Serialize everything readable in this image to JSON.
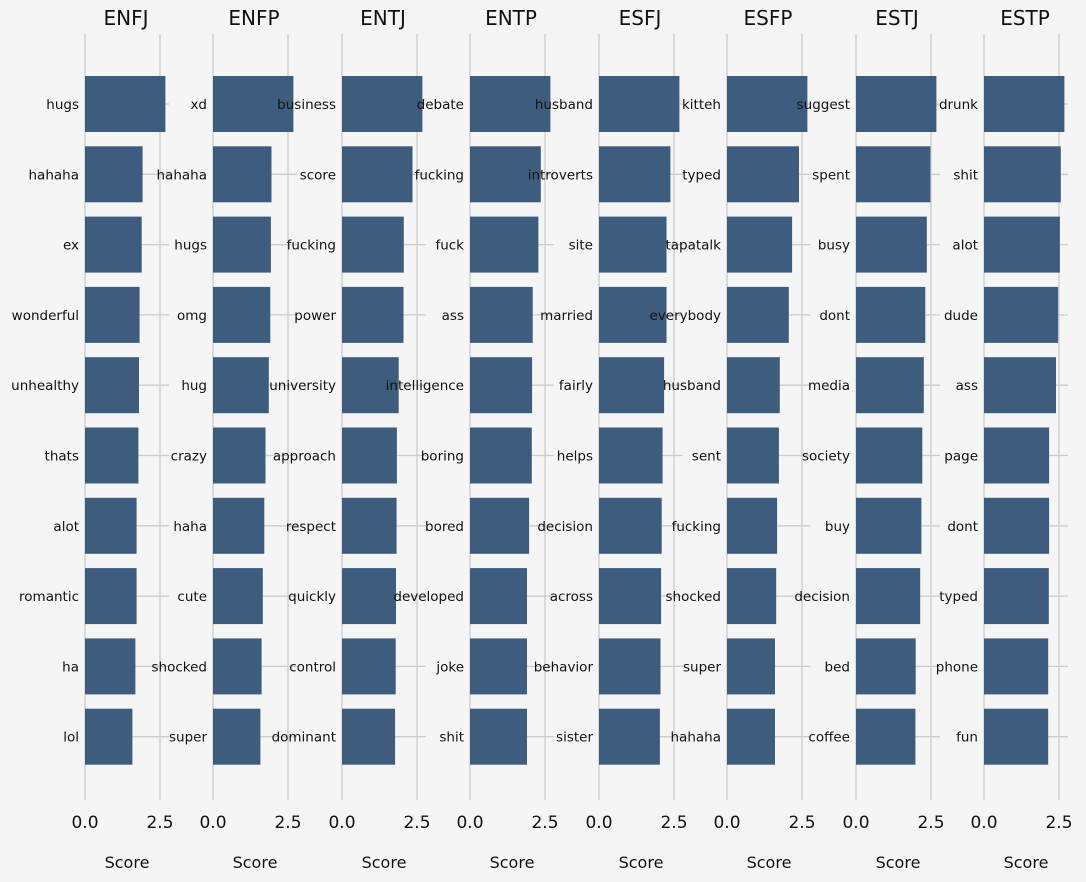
{
  "chart_data": {
    "type": "bar",
    "orientation": "horizontal",
    "bar_color": "#3e5d7e",
    "background_color": "#f5f5f5",
    "grid_color": "#cccccc",
    "grid": true,
    "xlabel": "Score",
    "xticks": [
      "0.0",
      "2.5"
    ],
    "panels": [
      {
        "title": "ENFJ",
        "xlim": [
          0,
          3.25
        ],
        "categories": [
          "hugs",
          "hahaha",
          "ex",
          "wonderful",
          "unhealthy",
          "thats",
          "alot",
          "romantic",
          "ha",
          "lol"
        ],
        "values": [
          2.68,
          1.92,
          1.89,
          1.82,
          1.8,
          1.78,
          1.72,
          1.72,
          1.68,
          1.58
        ]
      },
      {
        "title": "ENFP",
        "xlim": [
          0,
          3.25
        ],
        "categories": [
          "xd",
          "hahaha",
          "hugs",
          "omg",
          "hug",
          "crazy",
          "haha",
          "cute",
          "shocked",
          "super"
        ],
        "values": [
          2.68,
          1.95,
          1.93,
          1.91,
          1.86,
          1.75,
          1.71,
          1.66,
          1.62,
          1.58
        ]
      },
      {
        "title": "ENTJ",
        "xlim": [
          0,
          3.25
        ],
        "categories": [
          "business",
          "score",
          "fucking",
          "power",
          "university",
          "approach",
          "respect",
          "quickly",
          "control",
          "dominant"
        ],
        "values": [
          2.68,
          2.35,
          2.06,
          2.05,
          1.89,
          1.83,
          1.82,
          1.8,
          1.79,
          1.77
        ]
      },
      {
        "title": "ENTP",
        "xlim": [
          0,
          3.25
        ],
        "categories": [
          "debate",
          "fucking",
          "fuck",
          "ass",
          "intelligence",
          "boring",
          "bored",
          "developed",
          "joke",
          "shit"
        ],
        "values": [
          2.68,
          2.36,
          2.28,
          2.09,
          2.07,
          2.06,
          1.97,
          1.9,
          1.9,
          1.9
        ]
      },
      {
        "title": "ESFJ",
        "xlim": [
          0,
          3.25
        ],
        "categories": [
          "husband",
          "introverts",
          "site",
          "married",
          "fairly",
          "helps",
          "decision",
          "across",
          "behavior",
          "sister"
        ],
        "values": [
          2.68,
          2.38,
          2.25,
          2.25,
          2.17,
          2.12,
          2.09,
          2.07,
          2.05,
          2.03
        ]
      },
      {
        "title": "ESFP",
        "xlim": [
          0,
          3.25
        ],
        "categories": [
          "kitteh",
          "typed",
          "tapatalk",
          "everybody",
          "husband",
          "sent",
          "fucking",
          "shocked",
          "super",
          "hahaha"
        ],
        "values": [
          2.68,
          2.4,
          2.17,
          2.06,
          1.76,
          1.73,
          1.67,
          1.64,
          1.6,
          1.6
        ]
      },
      {
        "title": "ESTJ",
        "xlim": [
          0,
          3.25
        ],
        "categories": [
          "suggest",
          "spent",
          "busy",
          "dont",
          "media",
          "society",
          "buy",
          "decision",
          "bed",
          "coffee"
        ],
        "values": [
          2.68,
          2.48,
          2.36,
          2.31,
          2.26,
          2.21,
          2.18,
          2.14,
          1.99,
          1.98
        ]
      },
      {
        "title": "ESTP",
        "xlim": [
          0,
          3.25
        ],
        "categories": [
          "drunk",
          "shit",
          "alot",
          "dude",
          "ass",
          "page",
          "dont",
          "typed",
          "phone",
          "fun"
        ],
        "values": [
          2.68,
          2.56,
          2.53,
          2.47,
          2.4,
          2.17,
          2.17,
          2.16,
          2.14,
          2.14
        ]
      }
    ]
  }
}
